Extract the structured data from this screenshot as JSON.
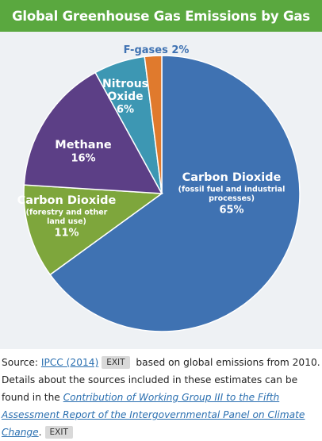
{
  "chart_data": {
    "type": "pie",
    "title": "Global Greenhouse Gas Emissions by Gas",
    "slices": [
      {
        "label": [
          "Carbon Dioxide"
        ],
        "sublabel": [
          "(fossil fuel and industrial",
          "processes)"
        ],
        "pct_label": "65%",
        "value": 65,
        "color": "#3f72b2"
      },
      {
        "label": [
          "Carbon Dioxide"
        ],
        "sublabel": [
          "(forestry and other",
          "land use)"
        ],
        "pct_label": "11%",
        "value": 11,
        "color": "#7ea63c"
      },
      {
        "label": [
          "Methane"
        ],
        "sublabel": [],
        "pct_label": "16%",
        "value": 16,
        "color": "#5c3f86"
      },
      {
        "label": [
          "Nitrous",
          "Oxide"
        ],
        "sublabel": [],
        "pct_label": "6%",
        "value": 6,
        "color": "#3d97b3"
      },
      {
        "label": [
          "F-gases 2%"
        ],
        "sublabel": [],
        "pct_label": "",
        "value": 2,
        "color": "#e07a2d"
      }
    ]
  },
  "caption": {
    "source_prefix": "Source: ",
    "source_link": "IPCC (2014)",
    "exit_label": "EXIT",
    "text_1": " based on global emissions from 2010. Details about the sources included in these estimates can be found in the ",
    "report_link": "Contribution of Working Group III to the Fifth Assessment Report of the Intergovernmental Panel on Climate Change",
    "text_2": "."
  }
}
